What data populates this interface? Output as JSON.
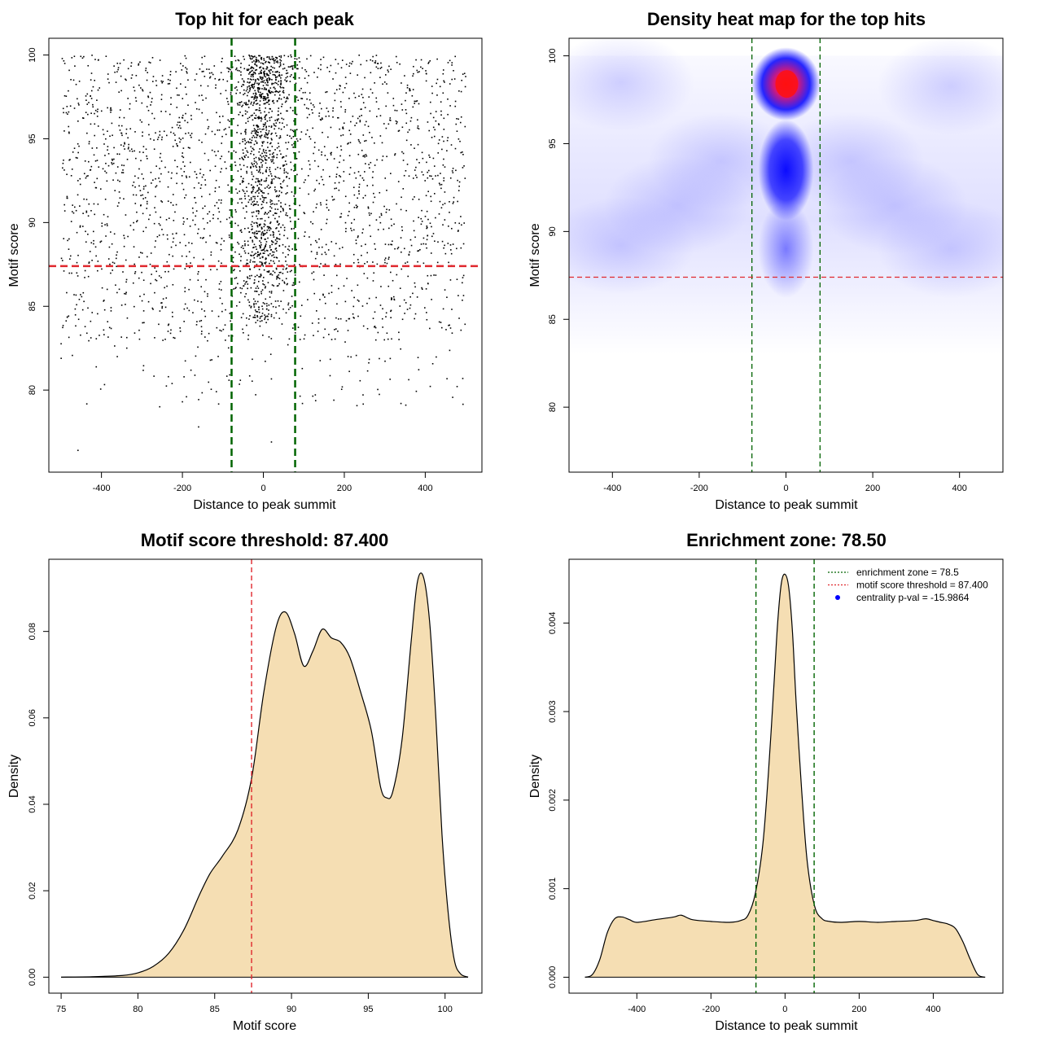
{
  "chart_data": [
    {
      "type": "scatter",
      "title": "Top hit for each peak",
      "xlabel": "Distance to peak summit",
      "ylabel": "Motif score",
      "xlim": [
        -530,
        540
      ],
      "ylim": [
        75.1,
        101.0
      ],
      "xticks": [
        -400,
        -200,
        0,
        200,
        400
      ],
      "yticks": [
        80,
        85,
        90,
        95,
        100
      ],
      "x_range_of_points": [
        -500,
        500
      ],
      "y_range_of_points": [
        76.3,
        100
      ],
      "point_density_note": "dense cloud, densest near x=0 and high scores",
      "vlines": [
        {
          "x": -78.5,
          "color": "#006400",
          "style": "dashed"
        },
        {
          "x": 78.5,
          "color": "#006400",
          "style": "dashed"
        }
      ],
      "hlines": [
        {
          "y": 87.4,
          "color": "#e0282e",
          "style": "dashed"
        }
      ]
    },
    {
      "type": "heatmap",
      "title": "Density heat map for the top hits",
      "xlabel": "Distance to peak summit",
      "ylabel": "Motif score",
      "xlim": [
        -500,
        500
      ],
      "ylim": [
        76.3,
        101.0
      ],
      "xticks": [
        -400,
        -200,
        0,
        200,
        400
      ],
      "yticks": [
        80,
        85,
        90,
        95,
        100
      ],
      "color_scale": [
        "#ffffff",
        "#0000ff",
        "#ff0000"
      ],
      "hotspots": [
        {
          "x": 0,
          "y": 98.4,
          "intensity": "max (red)"
        },
        {
          "x": 0,
          "y": 93.5,
          "intensity": "high (blue)"
        },
        {
          "x": 0,
          "y": 89.0,
          "intensity": "medium"
        },
        {
          "x": "all",
          "y": 89.0,
          "intensity": "low (pale blue band)"
        }
      ],
      "vlines": [
        {
          "x": -78.5,
          "color": "#006400",
          "style": "dashed"
        },
        {
          "x": 78.5,
          "color": "#006400",
          "style": "dashed"
        }
      ],
      "hlines": [
        {
          "y": 87.4,
          "color": "#e0282e",
          "style": "dashed"
        }
      ]
    },
    {
      "type": "area",
      "title": "Motif score threshold: 87.400",
      "xlabel": "Motif score",
      "ylabel": "Density",
      "xlim": [
        74.2,
        102.4
      ],
      "ylim": [
        -0.0037,
        0.0967
      ],
      "xticks": [
        75,
        80,
        85,
        90,
        95,
        100
      ],
      "yticks": [
        0.0,
        0.02,
        0.04,
        0.06,
        0.08
      ],
      "ytick_labels": [
        "0.00",
        "0.02",
        "0.04",
        "0.06",
        "0.08"
      ],
      "fill": "#f5deb3",
      "x": [
        75,
        77,
        79,
        80,
        81,
        82,
        83,
        84,
        84.7,
        85.5,
        86.5,
        87.4,
        88.2,
        89.0,
        89.6,
        90.2,
        90.8,
        91.4,
        92.0,
        92.6,
        93.2,
        93.8,
        94.5,
        95.2,
        95.8,
        96.2,
        96.6,
        97.2,
        97.8,
        98.2,
        98.6,
        99.0,
        99.4,
        99.8,
        100.2,
        100.6,
        101.0,
        101.5
      ],
      "y": [
        0.0,
        0.0001,
        0.0004,
        0.001,
        0.0025,
        0.0055,
        0.011,
        0.019,
        0.024,
        0.028,
        0.034,
        0.046,
        0.066,
        0.081,
        0.0845,
        0.0795,
        0.072,
        0.0755,
        0.0805,
        0.0785,
        0.0775,
        0.074,
        0.066,
        0.057,
        0.044,
        0.0415,
        0.043,
        0.055,
        0.078,
        0.0915,
        0.0925,
        0.082,
        0.06,
        0.033,
        0.015,
        0.004,
        0.0008,
        0.0
      ],
      "vlines": [
        {
          "x": 87.4,
          "color": "#e0282e",
          "style": "dashed"
        }
      ]
    },
    {
      "type": "area",
      "title": "Enrichment zone: 78.50",
      "xlabel": "Distance to peak summit",
      "ylabel": "Density",
      "xlim": [
        -583,
        588
      ],
      "ylim": [
        -0.00018,
        0.00472
      ],
      "xticks": [
        -400,
        -200,
        0,
        200,
        400
      ],
      "yticks": [
        0.0,
        0.001,
        0.002,
        0.003,
        0.004
      ],
      "ytick_labels": [
        "0.000",
        "0.001",
        "0.002",
        "0.003",
        "0.004"
      ],
      "fill": "#f5deb3",
      "x": [
        -540,
        -520,
        -500,
        -480,
        -460,
        -440,
        -420,
        -400,
        -350,
        -300,
        -280,
        -250,
        -200,
        -150,
        -120,
        -100,
        -80,
        -60,
        -45,
        -30,
        -20,
        -10,
        0,
        10,
        20,
        30,
        45,
        60,
        80,
        100,
        120,
        150,
        200,
        250,
        300,
        350,
        380,
        400,
        420,
        440,
        460,
        480,
        500,
        520,
        540
      ],
      "y": [
        0.0,
        3e-05,
        0.0002,
        0.0005,
        0.00066,
        0.00068,
        0.00065,
        0.00062,
        0.00065,
        0.00068,
        0.0007,
        0.00065,
        0.00063,
        0.00062,
        0.00064,
        0.0007,
        0.00095,
        0.0015,
        0.0023,
        0.0033,
        0.004,
        0.00445,
        0.00455,
        0.0044,
        0.0039,
        0.0031,
        0.0021,
        0.0013,
        0.0008,
        0.00066,
        0.00063,
        0.00062,
        0.00063,
        0.00062,
        0.00063,
        0.00064,
        0.00066,
        0.00064,
        0.00062,
        0.0006,
        0.00055,
        0.0004,
        0.0002,
        3e-05,
        0.0
      ],
      "vlines": [
        {
          "x": -78.5,
          "color": "#006400",
          "style": "dashed"
        },
        {
          "x": 78.5,
          "color": "#006400",
          "style": "dashed"
        }
      ],
      "legend": {
        "position": "top-right",
        "entries": [
          {
            "label": "enrichment zone = 78.5",
            "color": "#006400",
            "kind": "dotted-line"
          },
          {
            "label": "motif score threshold = 87.400",
            "color": "#e0282e",
            "kind": "dotted-line"
          },
          {
            "label": "centrality p-val = -15.9864",
            "color": "#0000ff",
            "kind": "point"
          }
        ]
      }
    }
  ]
}
